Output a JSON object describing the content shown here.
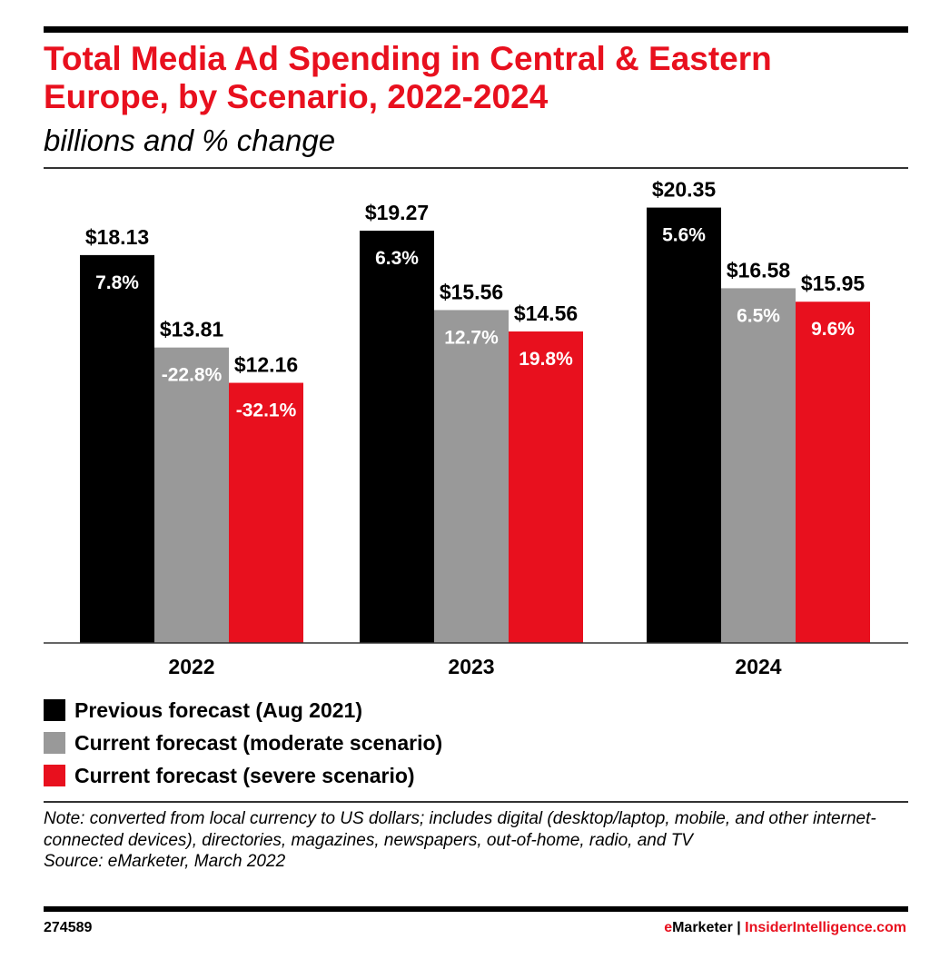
{
  "chart_data": {
    "type": "bar",
    "title": "Total Media Ad Spending in Central & Eastern Europe, by Scenario, 2022-2024",
    "subtitle": "billions and % change",
    "categories": [
      "2022",
      "2023",
      "2024"
    ],
    "ylim": [
      0,
      22.2
    ],
    "grid": false,
    "legend_placement": "bottom-left",
    "series": [
      {
        "name": "Previous forecast (Aug 2021)",
        "color": "#000000",
        "values": [
          18.13,
          19.27,
          20.35
        ],
        "labels": [
          "$18.13",
          "$19.27",
          "$20.35"
        ],
        "pct_labels": [
          "7.8%",
          "6.3%",
          "5.6%"
        ]
      },
      {
        "name": "Current forecast (moderate scenario)",
        "color": "#999999",
        "values": [
          13.81,
          15.56,
          16.58
        ],
        "labels": [
          "$13.81",
          "$15.56",
          "$16.58"
        ],
        "pct_labels": [
          "-22.8%",
          "12.7%",
          "6.5%"
        ]
      },
      {
        "name": "Current forecast (severe scenario)",
        "color": "#e8101e",
        "values": [
          12.16,
          14.56,
          15.95
        ],
        "labels": [
          "$12.16",
          "$14.56",
          "$15.95"
        ],
        "pct_labels": [
          "-32.1%",
          "19.8%",
          "9.6%"
        ]
      }
    ]
  },
  "note": "Note: converted from local currency to US dollars; includes digital (desktop/laptop, mobile, and other internet-connected devices), directories, magazines, newspapers, out-of-home, radio, and TV",
  "source": "Source: eMarketer, March 2022",
  "footer": {
    "id": "274589",
    "brand1": "eMarketer",
    "sep": " | ",
    "brand2": "InsiderIntelligence.com"
  },
  "colors": {
    "accent": "#e8101e"
  }
}
